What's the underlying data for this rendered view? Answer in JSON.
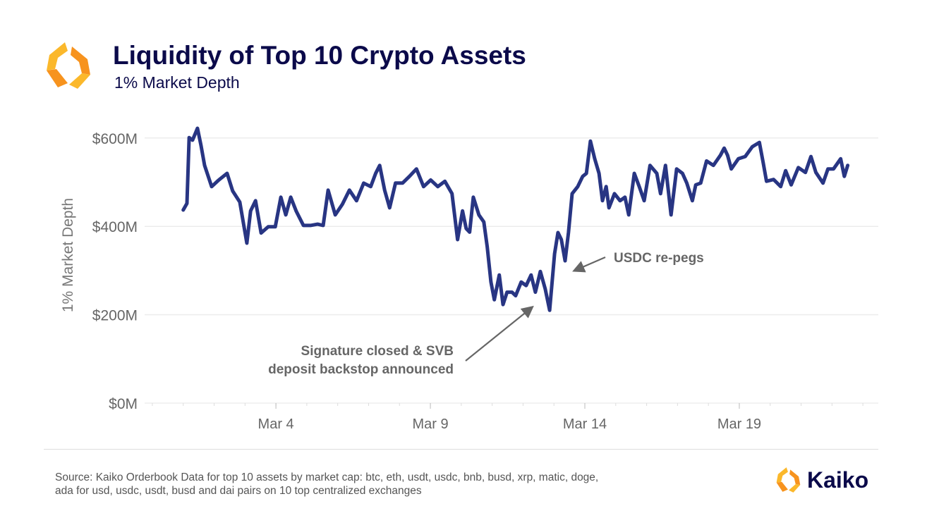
{
  "header": {
    "title": "Liquidity of Top 10 Crypto Assets",
    "subtitle": "1% Market Depth"
  },
  "footer": {
    "source_line1": "Source: Kaiko Orderbook Data for top 10 assets by market cap: btc, eth, usdt, usdc, bnb, busd, xrp, matic, doge,",
    "source_line2": "ada for usd, usdc, usdt, busd and dai pairs on 10 top centralized exchanges",
    "brand": "Kaiko"
  },
  "colors": {
    "line": "#283583",
    "title": "#0b0a4a",
    "annotation": "#666666",
    "logo_orange": "#f7931e",
    "logo_yellow": "#fbb82b"
  },
  "chart_data": {
    "type": "line",
    "title": "Liquidity of Top 10 Crypto Assets",
    "subtitle": "1% Market Depth",
    "ylabel": "1% Market Depth",
    "xlabel": "",
    "x_unit": "day of March",
    "xlim": [
      -0.25,
      23.5
    ],
    "ylim": [
      0,
      640
    ],
    "yticks": [
      0,
      200,
      400,
      600
    ],
    "ytick_labels": [
      "$0M",
      "$200M",
      "$400M",
      "$600M"
    ],
    "xticks": [
      4,
      9,
      14,
      19
    ],
    "xtick_labels": [
      "Mar 4",
      "Mar 9",
      "Mar 14",
      "Mar 19"
    ],
    "grid": "horizontal",
    "series": [
      {
        "values": [
          [
            1.0,
            437
          ],
          [
            1.12,
            452
          ],
          [
            1.19,
            601
          ],
          [
            1.3,
            595
          ],
          [
            1.46,
            622
          ],
          [
            1.57,
            585
          ],
          [
            1.69,
            538
          ],
          [
            1.92,
            490
          ],
          [
            2.15,
            505
          ],
          [
            2.42,
            520
          ],
          [
            2.6,
            480
          ],
          [
            2.83,
            455
          ],
          [
            3.06,
            362
          ],
          [
            3.18,
            435
          ],
          [
            3.34,
            458
          ],
          [
            3.52,
            385
          ],
          [
            3.75,
            399
          ],
          [
            3.98,
            399
          ],
          [
            4.16,
            466
          ],
          [
            4.32,
            426
          ],
          [
            4.48,
            466
          ],
          [
            4.66,
            434
          ],
          [
            4.89,
            402
          ],
          [
            5.12,
            402
          ],
          [
            5.35,
            405
          ],
          [
            5.53,
            402
          ],
          [
            5.69,
            482
          ],
          [
            5.92,
            426
          ],
          [
            6.15,
            450
          ],
          [
            6.38,
            482
          ],
          [
            6.61,
            458
          ],
          [
            6.84,
            498
          ],
          [
            7.07,
            490
          ],
          [
            7.23,
            520
          ],
          [
            7.36,
            538
          ],
          [
            7.52,
            482
          ],
          [
            7.68,
            442
          ],
          [
            7.87,
            498
          ],
          [
            8.1,
            498
          ],
          [
            8.32,
            513
          ],
          [
            8.55,
            530
          ],
          [
            8.78,
            490
          ],
          [
            9.01,
            505
          ],
          [
            9.24,
            490
          ],
          [
            9.47,
            502
          ],
          [
            9.7,
            474
          ],
          [
            9.88,
            370
          ],
          [
            10.04,
            435
          ],
          [
            10.16,
            395
          ],
          [
            10.27,
            387
          ],
          [
            10.39,
            466
          ],
          [
            10.57,
            426
          ],
          [
            10.73,
            410
          ],
          [
            10.84,
            354
          ],
          [
            10.96,
            274
          ],
          [
            11.07,
            234
          ],
          [
            11.23,
            290
          ],
          [
            11.35,
            223
          ],
          [
            11.48,
            251
          ],
          [
            11.64,
            251
          ],
          [
            11.76,
            243
          ],
          [
            11.94,
            274
          ],
          [
            12.1,
            266
          ],
          [
            12.26,
            290
          ],
          [
            12.4,
            251
          ],
          [
            12.56,
            298
          ],
          [
            12.72,
            258
          ],
          [
            12.86,
            210
          ],
          [
            13.02,
            338
          ],
          [
            13.13,
            386
          ],
          [
            13.24,
            370
          ],
          [
            13.36,
            322
          ],
          [
            13.47,
            386
          ],
          [
            13.59,
            474
          ],
          [
            13.77,
            490
          ],
          [
            13.93,
            513
          ],
          [
            14.05,
            520
          ],
          [
            14.18,
            593
          ],
          [
            14.32,
            553
          ],
          [
            14.46,
            520
          ],
          [
            14.57,
            458
          ],
          [
            14.69,
            490
          ],
          [
            14.78,
            442
          ],
          [
            14.96,
            474
          ],
          [
            15.14,
            458
          ],
          [
            15.3,
            466
          ],
          [
            15.42,
            426
          ],
          [
            15.6,
            520
          ],
          [
            15.76,
            490
          ],
          [
            15.92,
            458
          ],
          [
            16.11,
            538
          ],
          [
            16.33,
            520
          ],
          [
            16.45,
            474
          ],
          [
            16.61,
            538
          ],
          [
            16.79,
            426
          ],
          [
            16.97,
            530
          ],
          [
            17.16,
            520
          ],
          [
            17.3,
            498
          ],
          [
            17.48,
            458
          ],
          [
            17.59,
            494
          ],
          [
            17.75,
            498
          ],
          [
            17.94,
            548
          ],
          [
            18.16,
            538
          ],
          [
            18.39,
            561
          ],
          [
            18.51,
            577
          ],
          [
            18.62,
            561
          ],
          [
            18.74,
            530
          ],
          [
            18.97,
            553
          ],
          [
            19.19,
            558
          ],
          [
            19.42,
            580
          ],
          [
            19.65,
            590
          ],
          [
            19.77,
            545
          ],
          [
            19.88,
            502
          ],
          [
            20.11,
            506
          ],
          [
            20.34,
            490
          ],
          [
            20.5,
            526
          ],
          [
            20.68,
            494
          ],
          [
            20.91,
            533
          ],
          [
            21.14,
            522
          ],
          [
            21.32,
            558
          ],
          [
            21.48,
            522
          ],
          [
            21.71,
            498
          ],
          [
            21.87,
            530
          ],
          [
            22.05,
            530
          ],
          [
            22.28,
            553
          ],
          [
            22.4,
            513
          ],
          [
            22.51,
            538
          ]
        ]
      }
    ],
    "annotations": [
      {
        "text_lines": [
          "USDC re-pegs"
        ],
        "arrow_to": [
          13.5,
          310
        ]
      },
      {
        "text_lines": [
          "Signature closed & SVB",
          "deposit backstop announced"
        ],
        "arrow_to": [
          12.0,
          192
        ]
      }
    ]
  }
}
